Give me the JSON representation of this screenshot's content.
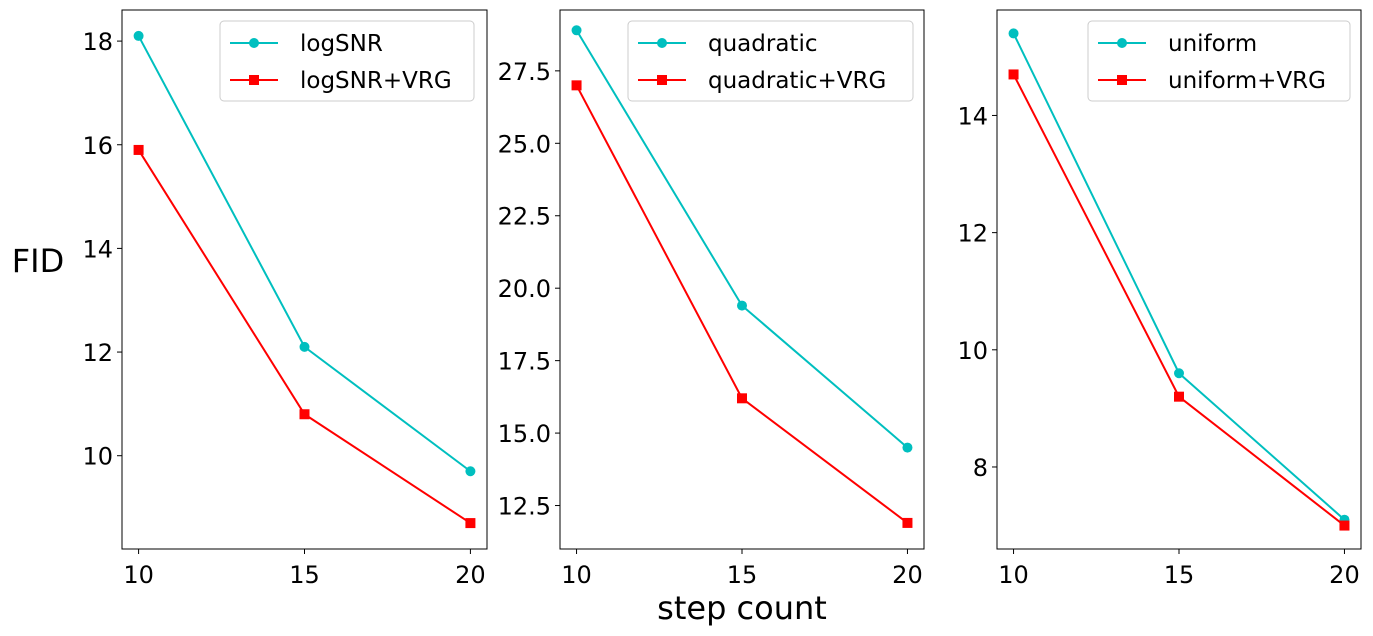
{
  "figure": {
    "ylabel": "FID",
    "xlabel": "step count"
  },
  "chart_data": [
    {
      "type": "line",
      "x": [
        10,
        15,
        20
      ],
      "xlim": [
        9.5,
        20.5
      ],
      "xticks": [
        10,
        15,
        20
      ],
      "xtick_labels": [
        "10",
        "15",
        "20"
      ],
      "ylim": [
        8.2,
        18.6
      ],
      "yticks": [
        10,
        12,
        14,
        16,
        18
      ],
      "ytick_labels": [
        "10",
        "12",
        "14",
        "16",
        "18"
      ],
      "legend_position": "top-right",
      "grid": false,
      "series": [
        {
          "name": "logSNR",
          "values": [
            18.1,
            12.1,
            9.7
          ],
          "color": "#00bfbf",
          "marker": "circle"
        },
        {
          "name": "logSNR+VRG",
          "values": [
            15.9,
            10.8,
            8.7
          ],
          "color": "#ff0000",
          "marker": "square"
        }
      ]
    },
    {
      "type": "line",
      "x": [
        10,
        15,
        20
      ],
      "xlim": [
        9.5,
        20.5
      ],
      "xticks": [
        10,
        15,
        20
      ],
      "xtick_labels": [
        "10",
        "15",
        "20"
      ],
      "ylim": [
        11.0,
        29.6
      ],
      "yticks": [
        12.5,
        15.0,
        17.5,
        20.0,
        22.5,
        25.0,
        27.5
      ],
      "ytick_labels": [
        "12.5",
        "15.0",
        "17.5",
        "20.0",
        "22.5",
        "25.0",
        "27.5"
      ],
      "legend_position": "top-right",
      "grid": false,
      "series": [
        {
          "name": "quadratic",
          "values": [
            28.9,
            19.4,
            14.5
          ],
          "color": "#00bfbf",
          "marker": "circle"
        },
        {
          "name": "quadratic+VRG",
          "values": [
            27.0,
            16.2,
            11.9
          ],
          "color": "#ff0000",
          "marker": "square"
        }
      ]
    },
    {
      "type": "line",
      "x": [
        10,
        15,
        20
      ],
      "xlim": [
        9.5,
        20.5
      ],
      "xticks": [
        10,
        15,
        20
      ],
      "xtick_labels": [
        "10",
        "15",
        "20"
      ],
      "ylim": [
        6.6,
        15.8
      ],
      "yticks": [
        8,
        10,
        12,
        14
      ],
      "ytick_labels": [
        "8",
        "10",
        "12",
        "14"
      ],
      "legend_position": "top-right",
      "grid": false,
      "series": [
        {
          "name": "uniform",
          "values": [
            15.4,
            9.6,
            7.1
          ],
          "color": "#00bfbf",
          "marker": "circle"
        },
        {
          "name": "uniform+VRG",
          "values": [
            14.7,
            9.2,
            7.0
          ],
          "color": "#ff0000",
          "marker": "square"
        }
      ]
    }
  ]
}
